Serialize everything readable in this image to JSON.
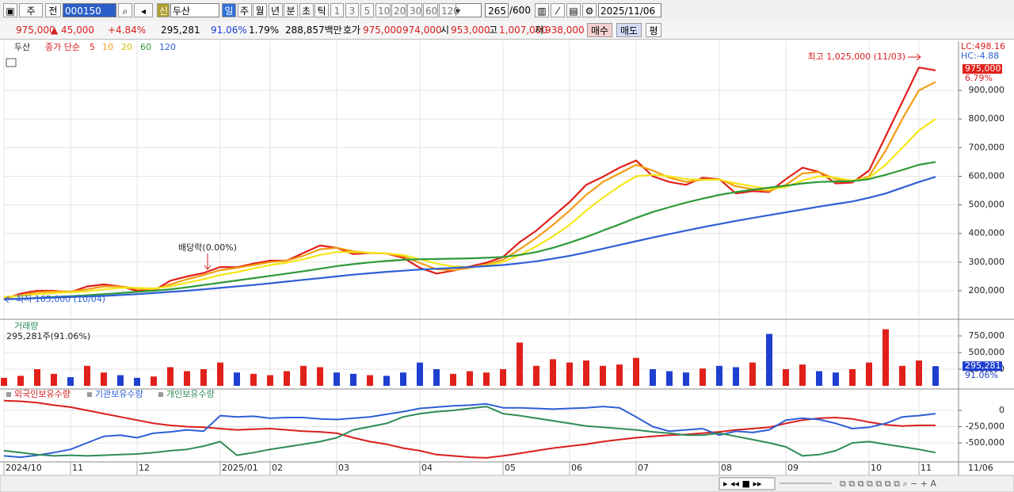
{
  "toolbar": {
    "market": "주",
    "scope": "전",
    "code": "000150",
    "new_badge": "신",
    "name": "두산",
    "periods": [
      "일",
      "주",
      "월",
      "년",
      "분",
      "초",
      "틱"
    ],
    "intervals": [
      "1",
      "3",
      "5",
      "10",
      "20",
      "30",
      "60",
      "120"
    ],
    "count": "265",
    "max_count": "/600",
    "date": "2025/11/06"
  },
  "info_bar": {
    "price": "975,000",
    "change": "▲ 45,000",
    "change_pct": "+4.84%",
    "volume": "295,281",
    "volume_ratio": "91.06%",
    "turnover": "1.79%",
    "amount": "288,857백만",
    "ask_label": "호가",
    "ask": "975,000",
    "bid": "974,000",
    "open_label": "시",
    "open": "953,000",
    "high_label": "고",
    "high": "1,007,000",
    "low_label": "저",
    "low": "938,000",
    "buy": "매수",
    "sell": "매도",
    "avg": "평"
  },
  "chart_data": [
    {
      "type": "line",
      "title": "두산",
      "subtitle": "종가 단순",
      "grid": true,
      "series": [
        {
          "name": "5",
          "color": "#e0201b",
          "values": [
            170000,
            190000,
            200000,
            200000,
            195000,
            215000,
            222000,
            215000,
            200000,
            200000,
            235000,
            250000,
            262000,
            283000,
            282000,
            295000,
            305000,
            305000,
            332000,
            358000,
            350000,
            328000,
            332000,
            330000,
            315000,
            280000,
            260000,
            270000,
            285000,
            298000,
            318000,
            370000,
            410000,
            460000,
            510000,
            570000,
            598000,
            630000,
            655000,
            600000,
            580000,
            570000,
            595000,
            590000,
            540000,
            548000,
            545000,
            590000,
            630000,
            615000,
            575000,
            578000,
            620000,
            740000,
            860000,
            980000,
            970000
          ]
        },
        {
          "name": "10",
          "color": "#f39c12",
          "values": [
            175000,
            185000,
            195000,
            198000,
            197000,
            205000,
            215000,
            215000,
            207000,
            203000,
            222000,
            240000,
            255000,
            272000,
            280000,
            290000,
            300000,
            305000,
            322000,
            345000,
            350000,
            338000,
            332000,
            330000,
            320000,
            297000,
            275000,
            272000,
            280000,
            292000,
            308000,
            345000,
            385000,
            430000,
            480000,
            535000,
            580000,
            610000,
            640000,
            620000,
            595000,
            580000,
            588000,
            590000,
            565000,
            555000,
            548000,
            570000,
            610000,
            615000,
            590000,
            582000,
            600000,
            690000,
            800000,
            900000,
            930000
          ]
        },
        {
          "name": "20",
          "color": "#f5e61a",
          "values": [
            178000,
            182000,
            188000,
            192000,
            195000,
            198000,
            205000,
            210000,
            210000,
            208000,
            215000,
            228000,
            240000,
            255000,
            265000,
            278000,
            290000,
            298000,
            310000,
            325000,
            335000,
            335000,
            333000,
            330000,
            325000,
            310000,
            295000,
            285000,
            283000,
            288000,
            300000,
            325000,
            355000,
            390000,
            430000,
            480000,
            525000,
            565000,
            600000,
            605000,
            600000,
            590000,
            588000,
            588000,
            575000,
            565000,
            555000,
            562000,
            585000,
            600000,
            595000,
            585000,
            595000,
            640000,
            700000,
            760000,
            800000
          ]
        },
        {
          "name": "60",
          "color": "#2e9a3a",
          "values": [
            170000,
            172000,
            175000,
            178000,
            181000,
            184000,
            188000,
            192000,
            196000,
            200000,
            205000,
            212000,
            220000,
            228000,
            236000,
            244000,
            252000,
            260000,
            268000,
            277000,
            286000,
            293000,
            299000,
            304000,
            308000,
            310000,
            311000,
            312000,
            313000,
            315000,
            318000,
            325000,
            335000,
            350000,
            368000,
            388000,
            410000,
            432000,
            455000,
            475000,
            492000,
            508000,
            522000,
            535000,
            545000,
            553000,
            560000,
            567000,
            575000,
            580000,
            582000,
            583000,
            590000,
            605000,
            622000,
            640000,
            650000
          ]
        },
        {
          "name": "120",
          "color": "#2f5fd6",
          "values": [
            170000,
            172000,
            174000,
            176000,
            178000,
            180000,
            182000,
            185000,
            188000,
            192000,
            196000,
            200000,
            205000,
            210000,
            215000,
            220000,
            226000,
            232000,
            238000,
            244000,
            250000,
            256000,
            261000,
            266000,
            270000,
            274000,
            277000,
            280000,
            283000,
            286000,
            290000,
            296000,
            303000,
            312000,
            322000,
            334000,
            347000,
            360000,
            373000,
            386000,
            398000,
            410000,
            422000,
            433000,
            444000,
            454000,
            464000,
            474000,
            484000,
            494000,
            503000,
            512000,
            525000,
            540000,
            560000,
            580000,
            598000
          ]
        }
      ],
      "ylim": [
        103000,
        1072000
      ],
      "yticks": [
        {
          "value": 200000,
          "label": "200,000"
        },
        {
          "value": 300000,
          "label": "300,000"
        },
        {
          "value": 400000,
          "label": "400,000"
        },
        {
          "value": 500000,
          "label": "500,000"
        },
        {
          "value": 600000,
          "label": "600,000"
        },
        {
          "value": 700000,
          "label": "700,000"
        },
        {
          "value": 800000,
          "label": "800,000"
        },
        {
          "value": 900000,
          "label": "900,000"
        }
      ],
      "high_label": "최고 1,025,000 (11/03)",
      "dividend_label": "배당락(0.00%)",
      "low_label": "최저 165,000 (10/04)",
      "lc_label": "LC:498.16",
      "hc_label": "HC:-4.88",
      "current": {
        "value": 975000,
        "label": "975,000"
      },
      "current_change": "6.79%"
    },
    {
      "type": "bar",
      "title": "거래량",
      "subtitle": "295,281주(91.06%)",
      "up_color": "#e0201b",
      "down_color": "#1f3fd0",
      "values": [
        120000,
        150000,
        250000,
        180000,
        130000,
        300000,
        200000,
        160000,
        120000,
        140000,
        280000,
        220000,
        250000,
        350000,
        200000,
        180000,
        160000,
        220000,
        300000,
        280000,
        200000,
        180000,
        160000,
        150000,
        200000,
        350000,
        250000,
        180000,
        220000,
        200000,
        250000,
        650000,
        300000,
        400000,
        350000,
        380000,
        300000,
        320000,
        420000,
        250000,
        220000,
        200000,
        260000,
        300000,
        280000,
        350000,
        780000,
        250000,
        320000,
        220000,
        200000,
        250000,
        350000,
        850000,
        300000,
        380000,
        295281
      ],
      "ylim": [
        -36000,
        988000
      ],
      "yticks": [
        {
          "value": 250000,
          "label": "250,000"
        },
        {
          "value": 500000,
          "label": "500,000"
        },
        {
          "value": 750000,
          "label": "750,000"
        }
      ],
      "current": {
        "value": 295281,
        "label": "295,281"
      },
      "current_ratio": "91.06%"
    },
    {
      "type": "line",
      "grid": true,
      "categories": [
        "2024/10",
        null,
        null,
        null,
        "11",
        null,
        null,
        null,
        "12",
        null,
        null,
        null,
        null,
        "2025/01",
        null,
        null,
        "02",
        null,
        null,
        null,
        "03",
        null,
        null,
        null,
        null,
        "04",
        null,
        null,
        null,
        null,
        "05",
        null,
        null,
        null,
        "06",
        null,
        null,
        null,
        "07",
        null,
        null,
        null,
        null,
        "08",
        null,
        null,
        null,
        "09",
        null,
        null,
        null,
        null,
        "10",
        null,
        null,
        "11",
        null
      ],
      "last_date_label": "11/06",
      "series": [
        {
          "name": "외국인보유수량",
          "color": "#d81e1e",
          "values": [
            150000,
            140000,
            120000,
            80000,
            50000,
            0,
            -50000,
            -100000,
            -150000,
            -200000,
            -230000,
            -250000,
            -260000,
            -280000,
            -300000,
            -290000,
            -280000,
            -300000,
            -320000,
            -330000,
            -350000,
            -420000,
            -480000,
            -520000,
            -580000,
            -620000,
            -680000,
            -700000,
            -720000,
            -730000,
            -700000,
            -660000,
            -620000,
            -580000,
            -550000,
            -520000,
            -480000,
            -450000,
            -420000,
            -400000,
            -380000,
            -370000,
            -350000,
            -330000,
            -300000,
            -280000,
            -260000,
            -200000,
            -150000,
            -120000,
            -110000,
            -130000,
            -180000,
            -220000,
            -240000,
            -230000,
            -230000
          ]
        },
        {
          "name": "기관보유수량",
          "color": "#2f5fd6",
          "values": [
            -700000,
            -720000,
            -690000,
            -650000,
            -600000,
            -500000,
            -400000,
            -380000,
            -420000,
            -350000,
            -330000,
            -300000,
            -320000,
            -80000,
            -100000,
            -90000,
            -120000,
            -110000,
            -110000,
            -130000,
            -140000,
            -120000,
            -100000,
            -60000,
            -20000,
            30000,
            50000,
            70000,
            80000,
            100000,
            40000,
            40000,
            30000,
            20000,
            30000,
            40000,
            60000,
            40000,
            -100000,
            -250000,
            -320000,
            -300000,
            -280000,
            -380000,
            -320000,
            -340000,
            -300000,
            -150000,
            -120000,
            -140000,
            -200000,
            -280000,
            -260000,
            -200000,
            -100000,
            -80000,
            -50000
          ]
        },
        {
          "name": "개인보유수량",
          "color": "#2e8b57",
          "values": [
            -620000,
            -650000,
            -680000,
            -700000,
            -690000,
            -700000,
            -690000,
            -680000,
            -670000,
            -650000,
            -620000,
            -600000,
            -550000,
            -480000,
            -690000,
            -650000,
            -600000,
            -560000,
            -520000,
            -480000,
            -420000,
            -300000,
            -250000,
            -200000,
            -100000,
            -50000,
            -20000,
            0,
            30000,
            60000,
            -50000,
            -80000,
            -120000,
            -160000,
            -200000,
            -240000,
            -260000,
            -280000,
            -300000,
            -330000,
            -350000,
            -380000,
            -380000,
            -350000,
            -400000,
            -450000,
            -500000,
            -560000,
            -700000,
            -680000,
            -620000,
            -500000,
            -480000,
            -520000,
            -560000,
            -600000,
            -650000
          ]
        }
      ],
      "ylim": [
        -780000,
        317000
      ],
      "yticks": [
        0,
        {
          "value": -250000,
          "label": "-250,000"
        },
        {
          "value": -500000,
          "label": "-500,000"
        }
      ]
    }
  ]
}
